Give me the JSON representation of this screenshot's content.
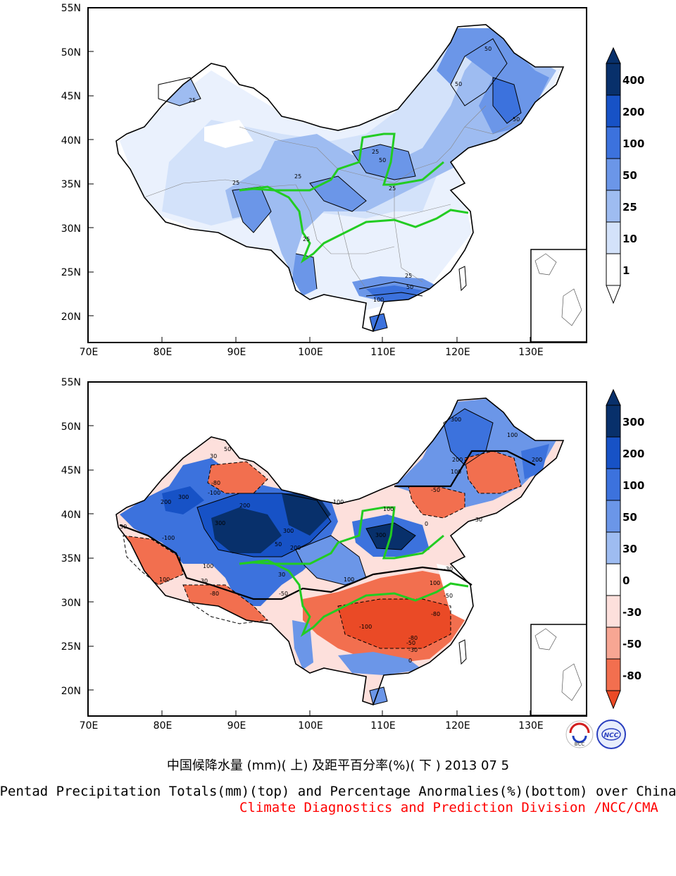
{
  "top_map": {
    "lat_labels": [
      "55N",
      "50N",
      "45N",
      "40N",
      "35N",
      "30N",
      "25N",
      "20N"
    ],
    "lon_labels": [
      "70E",
      "80E",
      "90E",
      "100E",
      "110E",
      "120E",
      "130E"
    ],
    "colorbar_labels": [
      "400",
      "200",
      "100",
      "50",
      "25",
      "10",
      "1"
    ],
    "colorbar_colors": [
      "#08306b",
      "#1752c6",
      "#3c72dd",
      "#6b96e8",
      "#9ebcf1",
      "#d3e2fa",
      "#ffffff"
    ],
    "contour_labels": [
      "25",
      "50",
      "100"
    ]
  },
  "bottom_map": {
    "lat_labels": [
      "55N",
      "50N",
      "45N",
      "40N",
      "35N",
      "30N",
      "25N",
      "20N"
    ],
    "lon_labels": [
      "70E",
      "80E",
      "90E",
      "100E",
      "110E",
      "120E",
      "130E"
    ],
    "colorbar_labels": [
      "300",
      "200",
      "100",
      "50",
      "30",
      "0",
      "-30",
      "-50",
      "-80"
    ],
    "colorbar_colors": [
      "#08306b",
      "#1752c6",
      "#3c72dd",
      "#6b96e8",
      "#9ebcf1",
      "#ffffff",
      "#fde0dc",
      "#f7a693",
      "#f26f4f",
      "#ea4a26"
    ],
    "contour_labels": [
      "300",
      "200",
      "100",
      "50",
      "30",
      "0",
      "-30",
      "-50",
      "-80",
      "-100"
    ]
  },
  "caption": {
    "chinese": "中国候降水量 (mm)( 上) 及距平百分率(%)( 下 ) 2013 07 5",
    "english": "Pentad Precipitation Totals(mm)(top) and Percentage Anormalies(%)(bottom) over China",
    "source": "Climate Diagnostics and Prediction Division /NCC/CMA"
  },
  "logos": {
    "left": "BCC",
    "right": "NCC"
  }
}
